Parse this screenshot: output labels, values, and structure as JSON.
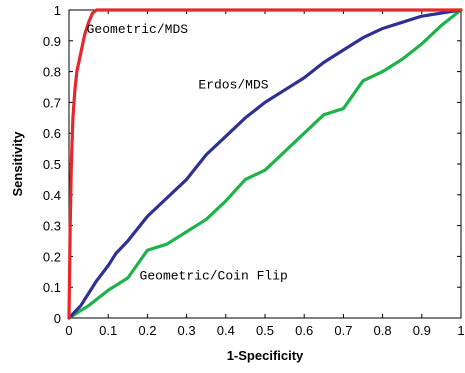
{
  "chart_data": {
    "type": "line",
    "title": "",
    "xlabel": "1-Specificity",
    "ylabel": "Sensitivity",
    "xlim": [
      0,
      1
    ],
    "ylim": [
      0,
      1
    ],
    "grid": false,
    "x_ticks": [
      "0",
      "0.1",
      "0.2",
      "0.3",
      "0.4",
      "0.5",
      "0.6",
      "0.7",
      "0.8",
      "0.9",
      "1"
    ],
    "y_ticks": [
      "0",
      "0.1",
      "0.2",
      "0.3",
      "0.4",
      "0.5",
      "0.6",
      "0.7",
      "0.8",
      "0.9",
      "1"
    ],
    "series": [
      {
        "name": "Geometric/MDS",
        "color": "#e8262b",
        "points": [
          [
            0,
            0
          ],
          [
            0.003,
            0.3
          ],
          [
            0.006,
            0.5
          ],
          [
            0.01,
            0.65
          ],
          [
            0.015,
            0.74
          ],
          [
            0.02,
            0.8
          ],
          [
            0.03,
            0.86
          ],
          [
            0.04,
            0.92
          ],
          [
            0.05,
            0.96
          ],
          [
            0.06,
            0.99
          ],
          [
            0.07,
            1.0
          ],
          [
            1.0,
            1.0
          ]
        ]
      },
      {
        "name": "Erdos/MDS",
        "color": "#2e3192",
        "points": [
          [
            0,
            0
          ],
          [
            0.03,
            0.04
          ],
          [
            0.05,
            0.08
          ],
          [
            0.07,
            0.12
          ],
          [
            0.1,
            0.17
          ],
          [
            0.12,
            0.21
          ],
          [
            0.15,
            0.25
          ],
          [
            0.2,
            0.33
          ],
          [
            0.25,
            0.39
          ],
          [
            0.3,
            0.45
          ],
          [
            0.35,
            0.53
          ],
          [
            0.4,
            0.59
          ],
          [
            0.45,
            0.65
          ],
          [
            0.5,
            0.7
          ],
          [
            0.55,
            0.74
          ],
          [
            0.6,
            0.78
          ],
          [
            0.65,
            0.83
          ],
          [
            0.7,
            0.87
          ],
          [
            0.75,
            0.91
          ],
          [
            0.8,
            0.94
          ],
          [
            0.85,
            0.96
          ],
          [
            0.9,
            0.98
          ],
          [
            0.95,
            0.99
          ],
          [
            1.0,
            1.0
          ]
        ]
      },
      {
        "name": "Geometric/Coin Flip",
        "color": "#1db34a",
        "points": [
          [
            0,
            0
          ],
          [
            0.05,
            0.04
          ],
          [
            0.1,
            0.09
          ],
          [
            0.15,
            0.13
          ],
          [
            0.2,
            0.22
          ],
          [
            0.25,
            0.24
          ],
          [
            0.3,
            0.28
          ],
          [
            0.35,
            0.32
          ],
          [
            0.4,
            0.38
          ],
          [
            0.45,
            0.45
          ],
          [
            0.5,
            0.48
          ],
          [
            0.55,
            0.54
          ],
          [
            0.6,
            0.6
          ],
          [
            0.65,
            0.66
          ],
          [
            0.7,
            0.68
          ],
          [
            0.75,
            0.77
          ],
          [
            0.8,
            0.8
          ],
          [
            0.85,
            0.84
          ],
          [
            0.9,
            0.89
          ],
          [
            0.95,
            0.95
          ],
          [
            1.0,
            1.0
          ]
        ]
      }
    ],
    "annotations": [
      {
        "text": "Geometric/MDS",
        "x": 0.045,
        "y": 0.925
      },
      {
        "text": "Erdos/MDS",
        "x": 0.33,
        "y": 0.745
      },
      {
        "text": "Geometric/Coin Flip",
        "x": 0.18,
        "y": 0.125
      }
    ]
  }
}
